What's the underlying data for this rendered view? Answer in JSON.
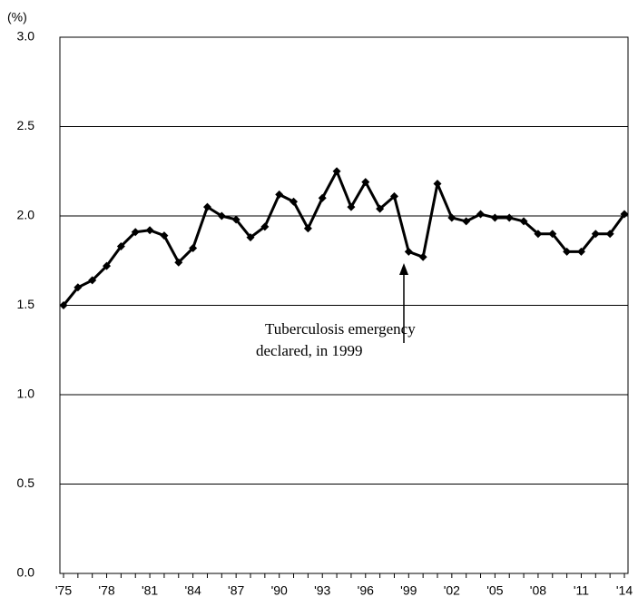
{
  "chart_data": {
    "type": "line",
    "y_label": "(%)",
    "categories": [
      "'75",
      null,
      null,
      "'78",
      null,
      null,
      "'81",
      null,
      null,
      "'84",
      null,
      null,
      "'87",
      null,
      null,
      "'90",
      null,
      null,
      "'93",
      null,
      null,
      "'96",
      null,
      null,
      "'99",
      null,
      null,
      "'02",
      null,
      null,
      "'05",
      null,
      null,
      "'08",
      null,
      null,
      "'11",
      null,
      null,
      "'14"
    ],
    "series": [
      {
        "name": null,
        "color": "#000000",
        "values": [
          1.5,
          1.6,
          1.64,
          1.72,
          1.83,
          1.91,
          1.92,
          1.89,
          1.74,
          1.82,
          2.05,
          2.0,
          1.98,
          1.88,
          1.94,
          2.12,
          2.08,
          1.93,
          2.1,
          2.25,
          2.05,
          2.19,
          2.04,
          2.11,
          1.8,
          1.77,
          2.18,
          1.99,
          1.97,
          2.01,
          1.99,
          1.99,
          1.97,
          1.9,
          1.9,
          1.8,
          1.8,
          1.9,
          1.9,
          2.01
        ]
      }
    ],
    "ylim": [
      0,
      3
    ],
    "yticks": [
      {
        "value": 0,
        "label": "0.0"
      },
      {
        "value": 0.5,
        "label": "0.5"
      },
      {
        "value": 1,
        "label": "1.0"
      },
      {
        "value": 1.5,
        "label": "1.5"
      },
      {
        "value": 2,
        "label": "2.0"
      },
      {
        "value": 2.5,
        "label": "2.5"
      },
      {
        "value": 3,
        "label": "3.0"
      }
    ],
    "grid": true,
    "annotation": [
      "Tuberculosis emergency",
      "declared, in 1999"
    ]
  }
}
